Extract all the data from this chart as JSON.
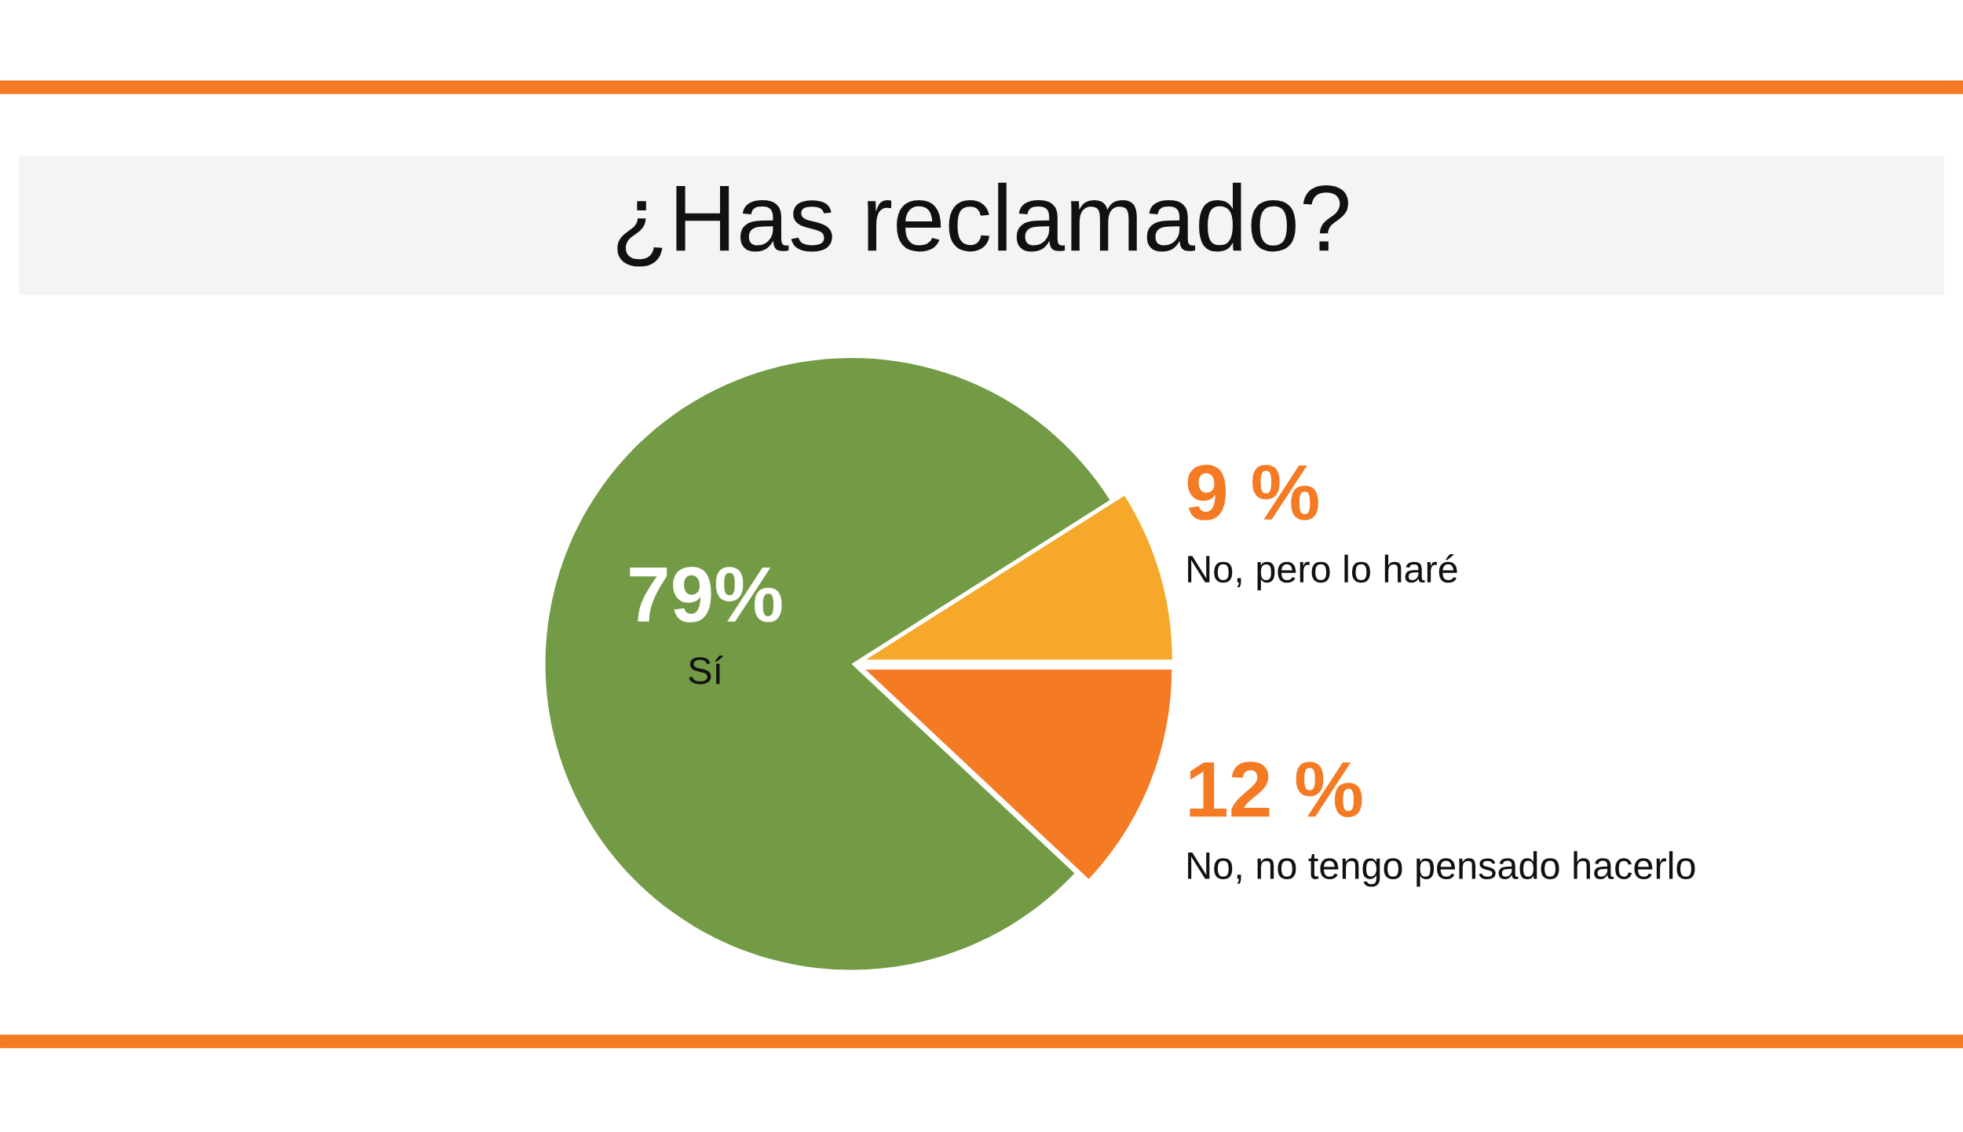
{
  "chart_data": {
    "type": "pie",
    "title": "¿Has reclamado?",
    "categories": [
      "Sí",
      "No, pero lo haré",
      "No, no tengo pensado hacerlo"
    ],
    "values": [
      79,
      9,
      12
    ],
    "value_labels": [
      "79%",
      "9 %",
      "12 %"
    ],
    "colors": [
      "#739a45",
      "#f5a82a",
      "#f47a24"
    ],
    "legend": false
  }
}
